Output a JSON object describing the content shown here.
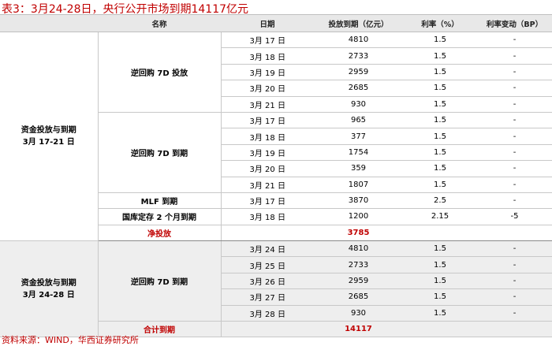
{
  "title": "表3：3月24-28日，央行公开市场到期14117亿元",
  "headers": {
    "name": "名称",
    "date": "日期",
    "amount": "投放到期（亿元）",
    "rate": "利率（%）",
    "rate_change": "利率变动（BP）"
  },
  "section1": {
    "label": "资金投放与到期\n3月 17-21 日",
    "group_a": {
      "name": "逆回购 7D 投放",
      "rows": [
        [
          "3月 17 日",
          "4810",
          "1.5",
          "-"
        ],
        [
          "3月 18 日",
          "2733",
          "1.5",
          "-"
        ],
        [
          "3月 19 日",
          "2959",
          "1.5",
          "-"
        ],
        [
          "3月 20 日",
          "2685",
          "1.5",
          "-"
        ],
        [
          "3月 21 日",
          "930",
          "1.5",
          "-"
        ]
      ]
    },
    "group_b": {
      "name": "逆回购 7D 到期",
      "rows": [
        [
          "3月 17 日",
          "965",
          "1.5",
          "-"
        ],
        [
          "3月 18 日",
          "377",
          "1.5",
          "-"
        ],
        [
          "3月 19 日",
          "1754",
          "1.5",
          "-"
        ],
        [
          "3月 20 日",
          "359",
          "1.5",
          "-"
        ],
        [
          "3月 21 日",
          "1807",
          "1.5",
          "-"
        ]
      ]
    },
    "mlf": {
      "name": "MLF 到期",
      "date": "3月 17 日",
      "amount": "3870",
      "rate": "2.5",
      "change": "-"
    },
    "deposit": {
      "name": "国库定存 2 个月到期",
      "date": "3月 18 日",
      "amount": "1200",
      "rate": "2.15",
      "change": "-5"
    },
    "net": {
      "name": "净投放",
      "amount": "3785"
    }
  },
  "section2": {
    "label": "资金投放与到期\n3月 24-28 日",
    "group": {
      "name": "逆回购 7D 到期",
      "rows": [
        [
          "3月 24 日",
          "4810",
          "1.5",
          "-"
        ],
        [
          "3月 25 日",
          "2733",
          "1.5",
          "-"
        ],
        [
          "3月 26 日",
          "2959",
          "1.5",
          "-"
        ],
        [
          "3月 27 日",
          "2685",
          "1.5",
          "-"
        ],
        [
          "3月 28 日",
          "930",
          "1.5",
          "-"
        ]
      ]
    },
    "total": {
      "name": "合计到期",
      "amount": "14117"
    }
  },
  "source": "资料来源：WIND，华西证券研究所"
}
